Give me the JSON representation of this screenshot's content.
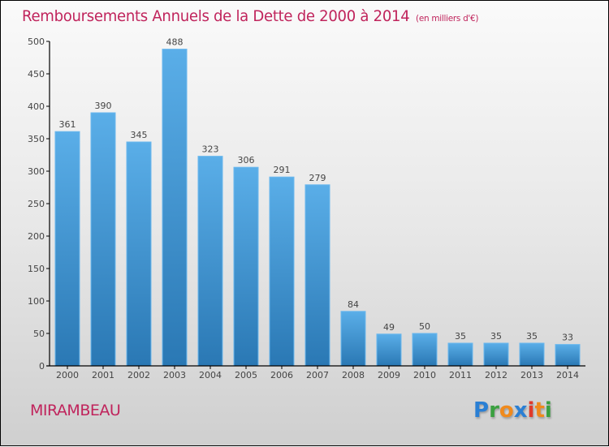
{
  "chart_data": {
    "type": "bar",
    "title": "Remboursements Annuels de la Dette de 2000 à 2014",
    "subtitle": "(en milliers d'€)",
    "xlabel": "",
    "ylabel": "",
    "categories": [
      "2000",
      "2001",
      "2002",
      "2003",
      "2004",
      "2005",
      "2006",
      "2007",
      "2008",
      "2009",
      "2010",
      "2011",
      "2012",
      "2013",
      "2014"
    ],
    "values": [
      361,
      390,
      345,
      488,
      323,
      306,
      291,
      279,
      84,
      49,
      50,
      35,
      35,
      35,
      33
    ],
    "ylim": [
      0,
      500
    ],
    "yticks": [
      0,
      50,
      100,
      150,
      200,
      250,
      300,
      350,
      400,
      450,
      500
    ],
    "grid": false,
    "bar_color_top": "#5aaee8",
    "bar_color_bottom": "#2a78b4"
  },
  "city": "MIRAMBEAU",
  "logo": {
    "letters": [
      {
        "ch": "P",
        "color": "#2a7fd4"
      },
      {
        "ch": "r",
        "color": "#3aa040"
      },
      {
        "ch": "o",
        "color": "#f08a1c"
      },
      {
        "ch": "x",
        "color": "#2a7fd4"
      },
      {
        "ch": "i",
        "color": "#e03a2a"
      },
      {
        "ch": "t",
        "color": "#f08a1c"
      },
      {
        "ch": "i",
        "color": "#3aa040"
      }
    ]
  }
}
